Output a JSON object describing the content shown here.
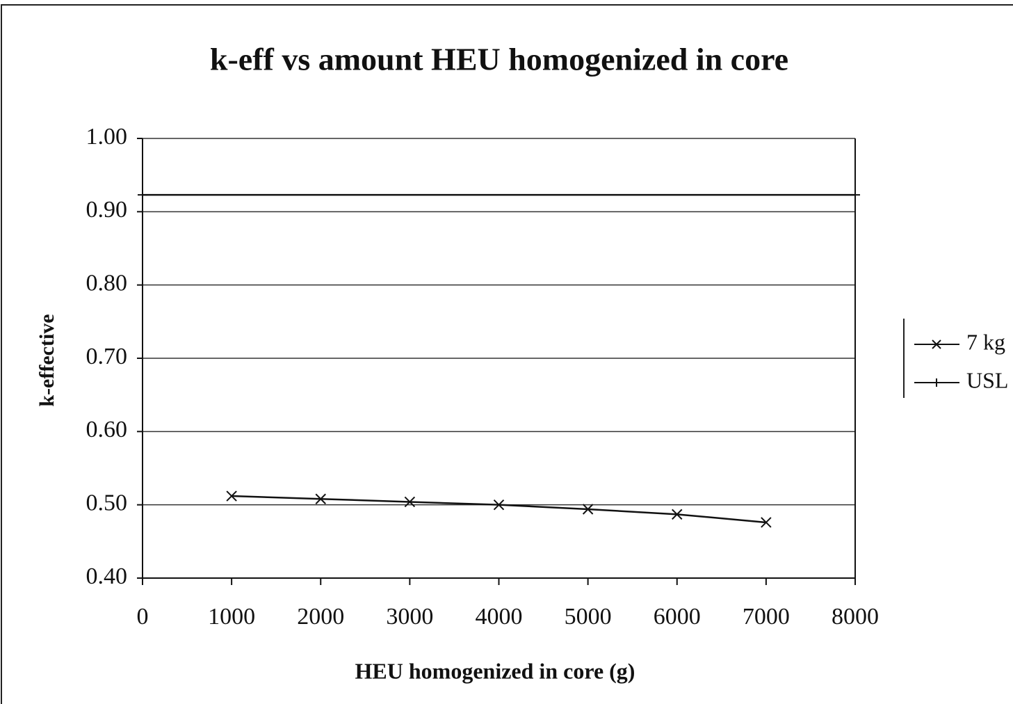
{
  "chart_data": {
    "type": "line",
    "title": "k-eff vs amount HEU homogenized in core",
    "xlabel": "HEU homogenized in core (g)",
    "ylabel": "k-effective",
    "xlim": [
      0,
      8000
    ],
    "xticks": [
      0,
      1000,
      2000,
      3000,
      4000,
      5000,
      6000,
      7000,
      8000
    ],
    "ylim": [
      0.4,
      1.0
    ],
    "yticks": [
      {
        "value": 0.4,
        "label": "0.40"
      },
      {
        "value": 0.5,
        "label": "0.50"
      },
      {
        "value": 0.6,
        "label": "0.60"
      },
      {
        "value": 0.7,
        "label": "0.70"
      },
      {
        "value": 0.8,
        "label": "0.80"
      },
      {
        "value": 0.9,
        "label": "0.90"
      },
      {
        "value": 1.0,
        "label": "1.00"
      }
    ],
    "grid": true,
    "legend": "right",
    "series": [
      {
        "name": "7 kg",
        "color": "#111111",
        "marker": "x",
        "x": [
          1000,
          2000,
          3000,
          4000,
          5000,
          6000,
          7000
        ],
        "values": [
          0.512,
          0.508,
          0.504,
          0.5,
          0.494,
          0.487,
          0.476
        ]
      },
      {
        "name": "USL",
        "color": "#111111",
        "marker": "+",
        "x": [
          0,
          8000
        ],
        "values": [
          0.923,
          0.923
        ]
      }
    ]
  }
}
